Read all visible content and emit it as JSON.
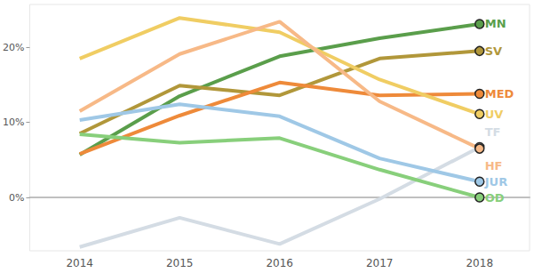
{
  "chart_data": {
    "type": "line",
    "categories": [
      "2014",
      "2015",
      "2016",
      "2017",
      "2018"
    ],
    "series": [
      {
        "name": "MN",
        "color": "#5a9e4b",
        "values": [
          5.7,
          13.5,
          18.8,
          21.2,
          23.1
        ]
      },
      {
        "name": "SV",
        "color": "#b1973a",
        "values": [
          8.5,
          14.9,
          13.6,
          18.5,
          19.5
        ]
      },
      {
        "name": "MED",
        "color": "#ee8a3a",
        "values": [
          5.8,
          10.9,
          15.3,
          13.6,
          13.8
        ]
      },
      {
        "name": "UV",
        "color": "#f0cd63",
        "values": [
          18.5,
          23.9,
          22.0,
          15.7,
          11.1
        ]
      },
      {
        "name": "TF",
        "color": "#d4dce4",
        "values": [
          -6.6,
          -2.7,
          -6.2,
          -0.2,
          6.7
        ]
      },
      {
        "name": "HF",
        "color": "#f7b987",
        "values": [
          11.5,
          19.1,
          23.4,
          12.8,
          6.5
        ]
      },
      {
        "name": "JUR",
        "color": "#9fc8e6",
        "values": [
          10.3,
          12.4,
          10.8,
          5.2,
          2.1
        ]
      },
      {
        "name": "OD",
        "color": "#88cf7b",
        "values": [
          8.4,
          7.3,
          7.9,
          3.7,
          0.0
        ]
      }
    ],
    "ylim": [
      -7.1,
      25.7
    ],
    "yticks": [
      {
        "value": 0,
        "label": "0%"
      },
      {
        "value": 10,
        "label": "10%"
      },
      {
        "value": 20,
        "label": "20%"
      }
    ],
    "grid": false,
    "marker": "circle"
  }
}
